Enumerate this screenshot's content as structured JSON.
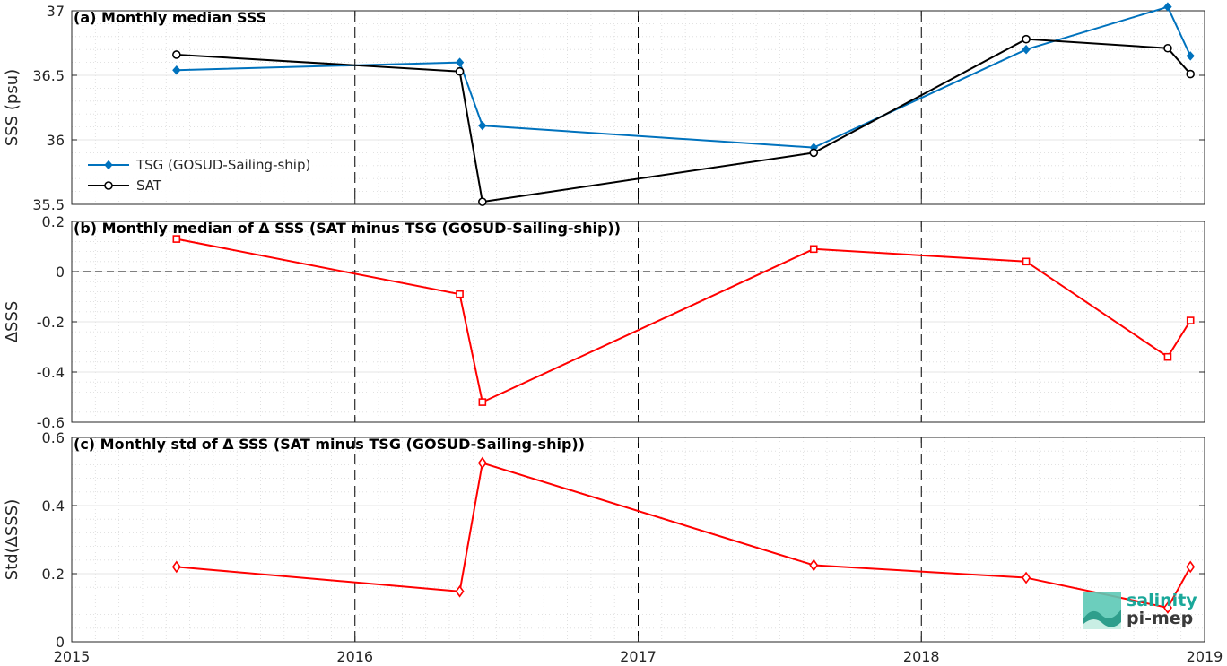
{
  "colors": {
    "tsg": "#0072BD",
    "sat": "#000000",
    "delta": "#ff0000",
    "logo": "#1aa89a"
  },
  "logo": {
    "line1": "salinity",
    "line2": "pi-mep"
  },
  "chart_data": [
    {
      "type": "line",
      "title": "(a) Monthly median SSS",
      "ylabel": "SSS (psu)",
      "xlim": [
        2015,
        2019
      ],
      "ylim": [
        35.5,
        37
      ],
      "yticks": [
        35.5,
        36,
        36.5,
        37
      ],
      "ytick_labels": [
        "35.5",
        "36",
        "36.5",
        "37"
      ],
      "xticks": [
        2015,
        2016,
        2017,
        2018,
        2019
      ],
      "xtick_labels": [
        "2015",
        "2016",
        "2017",
        "2018",
        "2019"
      ],
      "show_xtick_labels": false,
      "legend_position": "lower-left",
      "series": [
        {
          "name": "TSG (GOSUD-Sailing-ship)",
          "color": "#0072BD",
          "marker": "diamond-filled",
          "x": [
            2015.37,
            2016.37,
            2016.45,
            2017.62,
            2018.37,
            2018.87,
            2018.95
          ],
          "y": [
            36.54,
            36.6,
            36.11,
            35.94,
            36.7,
            37.03,
            36.65
          ]
        },
        {
          "name": "SAT",
          "color": "#000000",
          "marker": "circle",
          "x": [
            2015.37,
            2016.37,
            2016.45,
            2017.62,
            2018.37,
            2018.87,
            2018.95
          ],
          "y": [
            36.66,
            36.53,
            35.52,
            35.9,
            36.78,
            36.71,
            36.51
          ]
        }
      ]
    },
    {
      "type": "line",
      "title": "(b) Monthly median of Δ SSS (SAT minus TSG (GOSUD-Sailing-ship))",
      "ylabel": "ΔSSS",
      "xlim": [
        2015,
        2019
      ],
      "ylim": [
        -0.6,
        0.2
      ],
      "yticks": [
        -0.6,
        -0.4,
        -0.2,
        0,
        0.2
      ],
      "ytick_labels": [
        "-0.6",
        "-0.4",
        "-0.2",
        "0",
        "0.2"
      ],
      "xticks": [
        2015,
        2016,
        2017,
        2018,
        2019
      ],
      "show_xtick_labels": false,
      "zero_line": true,
      "series": [
        {
          "color": "#ff0000",
          "marker": "square",
          "x": [
            2015.37,
            2016.37,
            2016.45,
            2017.62,
            2018.37,
            2018.87,
            2018.95
          ],
          "y": [
            0.13,
            -0.09,
            -0.52,
            0.09,
            0.04,
            -0.34,
            -0.195
          ]
        }
      ]
    },
    {
      "type": "line",
      "title": "(c) Monthly std of Δ SSS (SAT minus TSG (GOSUD-Sailing-ship))",
      "ylabel": "Std(ΔSSS)",
      "xlim": [
        2015,
        2019
      ],
      "ylim": [
        0,
        0.6
      ],
      "yticks": [
        0,
        0.2,
        0.4,
        0.6
      ],
      "ytick_labels": [
        "0",
        "0.2",
        "0.4",
        "0.6"
      ],
      "xticks": [
        2015,
        2016,
        2017,
        2018,
        2019
      ],
      "xtick_labels": [
        "2015",
        "2016",
        "2017",
        "2018",
        "2019"
      ],
      "show_xtick_labels": true,
      "series": [
        {
          "color": "#ff0000",
          "marker": "diamond",
          "x": [
            2015.37,
            2016.37,
            2016.45,
            2017.62,
            2018.37,
            2018.87,
            2018.95
          ],
          "y": [
            0.22,
            0.148,
            0.525,
            0.225,
            0.188,
            0.1,
            0.22
          ]
        }
      ]
    }
  ]
}
